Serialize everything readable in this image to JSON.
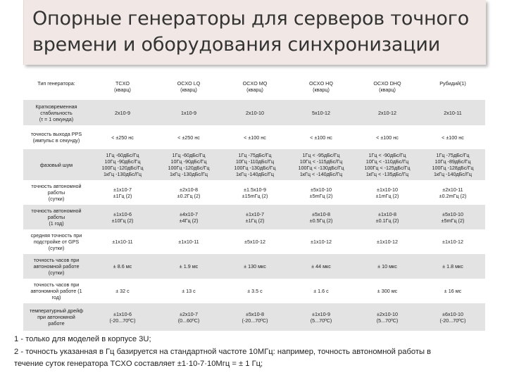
{
  "title": "Опорные генераторы для серверов точного времени и оборудования синхронизации",
  "table": {
    "header": {
      "label": "Тип генератора:",
      "columns": [
        {
          "name": "TCXO",
          "sub": "(кварц)"
        },
        {
          "name": "OCXO LQ",
          "sub": "(кварц)"
        },
        {
          "name": "OCXO MQ",
          "sub": "(кварц)"
        },
        {
          "name": "OCXO HQ",
          "sub": "(кварц)"
        },
        {
          "name": "OCXO DHQ",
          "sub": "(кварц)"
        },
        {
          "name": "Рубидий(1)",
          "sub": ""
        }
      ]
    },
    "rows": [
      {
        "label": "Кратковременная\nстабильность\n(τ = 1 секунда)",
        "values": [
          "2x10-9",
          "1x10-9",
          "2x10-10",
          "5x10-12",
          "2x10-12",
          "2x10-11"
        ]
      },
      {
        "label": "точность выхода PPS\n(импульс в секунду)",
        "values": [
          "< ±250 нс",
          "< ±250 нс",
          "< ±100 нс",
          "< ±100 нс",
          "< ±100 нс",
          "< ±100 нс"
        ]
      },
      {
        "label": "фазовый шум",
        "values": [
          "1Гц -60дБс/Гц\n10Гц -90дБс/Гц\n100Гц -120дБс/Гц\n1кГц -130дБс/Гц",
          "1Гц -60дБс/Гц\n10Гц -90дБс/Гц\n100Гц -120дБс/Гц\n1кГц -130дБс/Гц",
          "1Гц -75дБс/Гц\n10Гц -110дБс/Гц\n100Гц -130дБс/Гц\n1кГц -140дБс/Гц",
          "1Гц < -95дБс/Гц\n10Гц < -115дБс/Гц\n100Гц < -130дБс/Гц\n1кГц < -140дБс/Гц",
          "1Гц < -90дБс/Гц\n10Гц < -110дБс/Гц\n100Гц < -125дБс/Гц\n1кГц < -135дБс/Гц",
          "1Гц -75дБс/Гц\n10Гц -89дБс/Гц\n100Гц -128дБс/Гц\n1кГц -140дБс/Гц"
        ]
      },
      {
        "label": "точность автономной\nработы\n(сутки)",
        "values": [
          "±1x10-7\n±1Гц (2)",
          "±2x10-8\n±0.2Гц (2)",
          "±1.5x10-9\n±15mГц (2)",
          "±5x10-10\n±5mГц (2)",
          "±1x10-10\n±1mГц (2)",
          "±2x10-11\n±0.2mГц (2)"
        ]
      },
      {
        "label": "точность автономной\nработы\n(1 год)",
        "values": [
          "±1x10-6\n±10Гц (2)",
          "±4x10-7\n±4Гц (2)",
          "±1x10-7\n±1Гц (2)",
          "±5x10-8\n±0.5Гц (2)",
          "±1x10-8\n±0.1Гц (2)",
          "±5x10-10\n±5mГц (2)"
        ]
      },
      {
        "label": "средняя точность при\nподстройке от GPS\n(сутки)",
        "values": [
          "±1x10-11",
          "±1x10-11",
          "±5x10-12",
          "±1x10-12",
          "±1x10-12",
          "±1x10-12"
        ]
      },
      {
        "label": "точность часов при\nавтономной работе\n(сутки)",
        "values": [
          "± 8.6 мс",
          "± 1.9 мс",
          "± 130 мкс",
          "± 44 мкс",
          "± 10 мкс",
          "± 1.8 мкс"
        ]
      },
      {
        "label": "точность часов при\nавтономной работе (1\nгод)",
        "values": [
          "± 32 с",
          "± 13 с",
          "± 3.5 с",
          "± 1.6 с",
          "± 300 мс",
          "± 16 мс"
        ]
      },
      {
        "label": "температурный дрейф\nпри автономной\nработе",
        "values": [
          "±1x10-6\n(-20...70ºC)",
          "±2x10-7\n(0...60ºC)",
          "±5x10-8\n(-20...70ºC)",
          "±1x10-9\n(5...70ºC)",
          "±2x10-10\n(5...70ºC)",
          "±6x10-10\n(-20...70ºC)"
        ]
      }
    ]
  },
  "footnotes": [
    "1 - только для моделей в корпусе 3U;",
    "2 - точность указанная в Гц базируется на стандартной частоте 10МГц: например, точность автономной работы в",
    "течение суток генератора TCXO составляет ±1·10-7·10Мгц = ± 1 Гц;"
  ]
}
